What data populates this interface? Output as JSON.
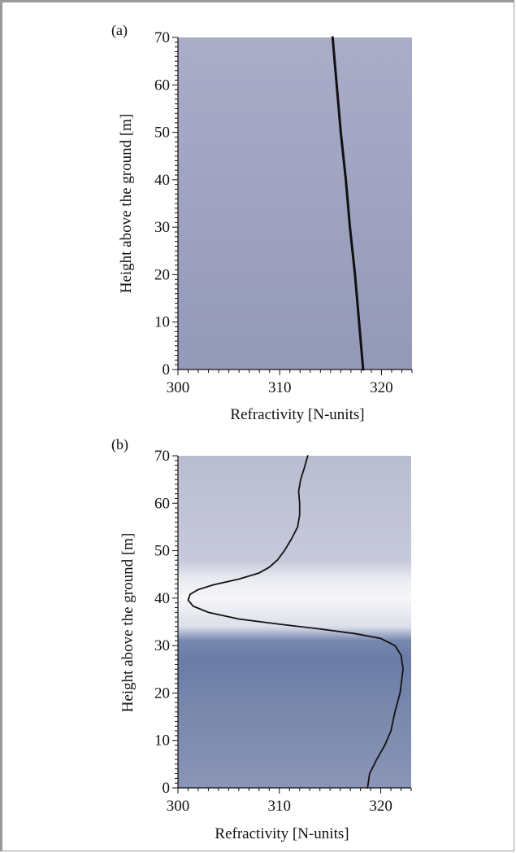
{
  "chart_data": [
    {
      "type": "line",
      "panel_label": "(a)",
      "xlabel": "Refractivity [N-units]",
      "ylabel": "Height above the ground [m]",
      "xlim": [
        300,
        323
      ],
      "ylim": [
        0,
        70
      ],
      "xticks": [
        300,
        310,
        320
      ],
      "yticks": [
        0,
        10,
        20,
        30,
        40,
        50,
        60,
        70
      ],
      "grid": false,
      "background": {
        "type": "height-gradient",
        "stops": [
          {
            "y": 0,
            "color": "#9499b8"
          },
          {
            "y": 70,
            "color": "#a9adc8"
          }
        ]
      },
      "series": [
        {
          "color": "#111111",
          "x": [
            318.2,
            317.8,
            317.4,
            316.9,
            316.5,
            316.0,
            315.6,
            315.2
          ],
          "y": [
            0,
            10,
            20,
            30,
            40,
            50,
            60,
            70
          ]
        }
      ]
    },
    {
      "type": "line",
      "panel_label": "(b)",
      "xlabel": "Refractivity [N-units]",
      "ylabel": "Height above the ground [m]",
      "xlim": [
        300,
        323
      ],
      "ylim": [
        0,
        70
      ],
      "xticks": [
        300,
        310,
        320
      ],
      "yticks": [
        0,
        10,
        20,
        30,
        40,
        50,
        60,
        70
      ],
      "grid": false,
      "background": {
        "type": "height-gradient",
        "stops": [
          {
            "y": 0,
            "color": "#8a95b6"
          },
          {
            "y": 15,
            "color": "#7b89ad"
          },
          {
            "y": 27,
            "color": "#6b7ca6"
          },
          {
            "y": 31,
            "color": "#7787ae"
          },
          {
            "y": 34,
            "color": "#dcdfea"
          },
          {
            "y": 40,
            "color": "#f6f6f8"
          },
          {
            "y": 44,
            "color": "#eaebf2"
          },
          {
            "y": 48,
            "color": "#c6c9da"
          },
          {
            "y": 70,
            "color": "#babdd1"
          }
        ]
      },
      "series": [
        {
          "color": "#111111",
          "x": [
            318.7,
            318.9,
            319.6,
            320.4,
            321.0,
            321.4,
            321.9,
            322.2,
            322.0,
            321.4,
            320.0,
            317.5,
            314.0,
            310.0,
            306.0,
            303.0,
            301.5,
            301.0,
            301.2,
            302.0,
            303.5,
            306.0,
            308.0,
            309.0,
            309.8,
            310.5,
            311.2,
            311.8,
            312.0,
            312.0,
            311.9,
            312.1,
            312.4,
            312.6,
            312.8
          ],
          "y": [
            0,
            3,
            6,
            9,
            12,
            16,
            20,
            25,
            28,
            30,
            31.5,
            32.5,
            33.5,
            34.5,
            35.6,
            37.0,
            38.3,
            39.6,
            40.8,
            41.8,
            42.8,
            44.0,
            45.3,
            46.5,
            48.0,
            50.0,
            52.5,
            55.0,
            57.5,
            60.0,
            62.5,
            65.0,
            67.0,
            68.5,
            70.0
          ]
        }
      ]
    }
  ]
}
